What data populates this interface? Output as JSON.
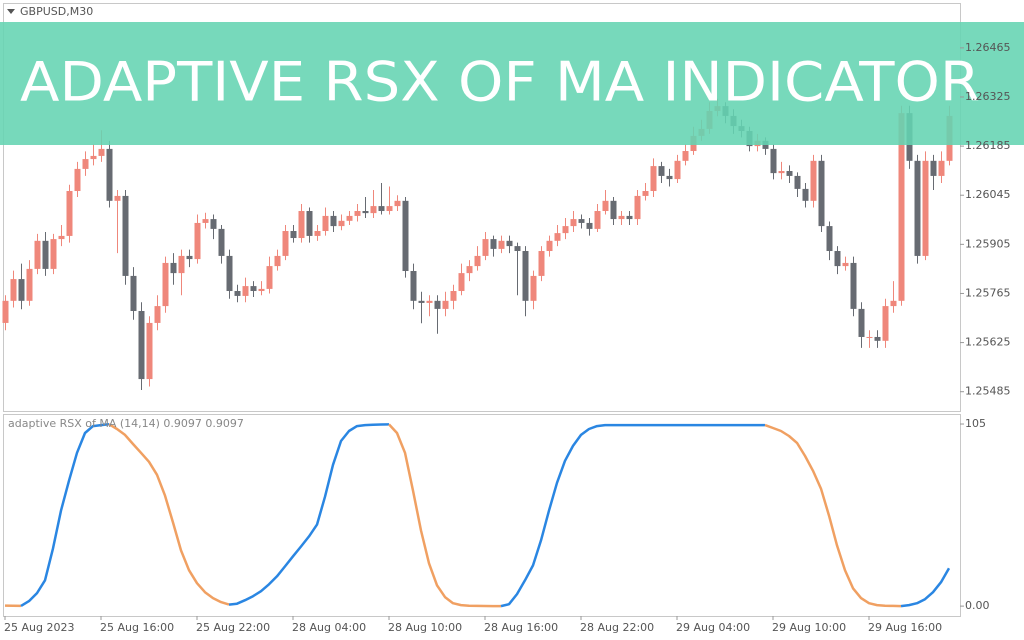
{
  "banner": "ADAPTIVE RSX OF MA INDICATOR",
  "chart_data": [
    {
      "type": "candlestick",
      "title": "GBPUSD,M30",
      "up_color": "#ef877b",
      "down_color": "#676b72",
      "ylim": [
        1.2543,
        1.2659
      ],
      "yticks": [
        1.26465,
        1.26325,
        1.26185,
        1.26045,
        1.25905,
        1.25765,
        1.25625,
        1.25485
      ],
      "xlim": [
        -0.25,
        119.375
      ],
      "ohlc": [
        [
          1.25681,
          1.2576,
          1.2566,
          1.25744
        ],
        [
          1.25744,
          1.2583,
          1.25725,
          1.25806
        ],
        [
          1.25806,
          1.2585,
          1.2572,
          1.25744
        ],
        [
          1.25744,
          1.2586,
          1.2573,
          1.25835
        ],
        [
          1.25835,
          1.25935,
          1.2582,
          1.25915
        ],
        [
          1.25915,
          1.2594,
          1.25815,
          1.25835
        ],
        [
          1.25835,
          1.25935,
          1.2582,
          1.2592
        ],
        [
          1.2592,
          1.2596,
          1.259,
          1.25929
        ],
        [
          1.25929,
          1.26075,
          1.2591,
          1.26057
        ],
        [
          1.26057,
          1.2614,
          1.2604,
          1.2612
        ],
        [
          1.2612,
          1.2617,
          1.261,
          1.26148
        ],
        [
          1.26148,
          1.2619,
          1.2613,
          1.26157
        ],
        [
          1.26157,
          1.2623,
          1.2614,
          1.26177
        ],
        [
          1.26177,
          1.262,
          1.2601,
          1.26029
        ],
        [
          1.26029,
          1.2606,
          1.2588,
          1.26043
        ],
        [
          1.26043,
          1.2606,
          1.2579,
          1.25815
        ],
        [
          1.25815,
          1.2584,
          1.2569,
          1.25715
        ],
        [
          1.25715,
          1.2574,
          1.2549,
          1.25521
        ],
        [
          1.25521,
          1.257,
          1.255,
          1.25681
        ],
        [
          1.25681,
          1.2576,
          1.2566,
          1.25729
        ],
        [
          1.25729,
          1.2587,
          1.2571,
          1.25852
        ],
        [
          1.25852,
          1.2588,
          1.2579,
          1.25823
        ],
        [
          1.25823,
          1.2589,
          1.2576,
          1.25872
        ],
        [
          1.25872,
          1.2589,
          1.2584,
          1.25863
        ],
        [
          1.25863,
          1.2599,
          1.2585,
          1.25966
        ],
        [
          1.25966,
          1.25995,
          1.2595,
          1.25977
        ],
        [
          1.25977,
          1.2599,
          1.2592,
          1.25949
        ],
        [
          1.25949,
          1.2596,
          1.2585,
          1.25872
        ],
        [
          1.25872,
          1.2589,
          1.2575,
          1.25772
        ],
        [
          1.25772,
          1.2579,
          1.2574,
          1.25758
        ],
        [
          1.25758,
          1.2581,
          1.2574,
          1.25786
        ],
        [
          1.25786,
          1.258,
          1.25755,
          1.25772
        ],
        [
          1.25772,
          1.258,
          1.2576,
          1.25778
        ],
        [
          1.25778,
          1.2587,
          1.25765,
          1.25843
        ],
        [
          1.25843,
          1.2589,
          1.2583,
          1.25872
        ],
        [
          1.25872,
          1.2596,
          1.2586,
          1.25943
        ],
        [
          1.25943,
          1.2596,
          1.2591,
          1.25923
        ],
        [
          1.25923,
          1.2602,
          1.2591,
          1.26
        ],
        [
          1.26,
          1.2601,
          1.2591,
          1.25929
        ],
        [
          1.25929,
          1.2596,
          1.25915,
          1.25943
        ],
        [
          1.25943,
          1.2601,
          1.2593,
          1.25986
        ],
        [
          1.25986,
          1.26,
          1.2594,
          1.25957
        ],
        [
          1.25957,
          1.2599,
          1.25945,
          1.25972
        ],
        [
          1.25972,
          1.26,
          1.2596,
          1.25986
        ],
        [
          1.25986,
          1.2602,
          1.2597,
          1.26
        ],
        [
          1.26,
          1.2604,
          1.2598,
          1.25994
        ],
        [
          1.25994,
          1.2606,
          1.2598,
          1.26014
        ],
        [
          1.26014,
          1.2608,
          1.2599,
          1.26
        ],
        [
          1.26,
          1.2607,
          1.2599,
          1.26014
        ],
        [
          1.26014,
          1.26045,
          1.26,
          1.26029
        ],
        [
          1.26029,
          1.2604,
          1.2581,
          1.25829
        ],
        [
          1.25829,
          1.2585,
          1.2572,
          1.25744
        ],
        [
          1.25744,
          1.2577,
          1.2568,
          1.25738
        ],
        [
          1.25738,
          1.2576,
          1.257,
          1.25744
        ],
        [
          1.25744,
          1.2576,
          1.2565,
          1.25721
        ],
        [
          1.25721,
          1.2577,
          1.257,
          1.25744
        ],
        [
          1.25744,
          1.2579,
          1.2572,
          1.25772
        ],
        [
          1.25772,
          1.2585,
          1.2576,
          1.25823
        ],
        [
          1.25823,
          1.2586,
          1.258,
          1.25843
        ],
        [
          1.25843,
          1.259,
          1.2583,
          1.25872
        ],
        [
          1.25872,
          1.2594,
          1.2586,
          1.2592
        ],
        [
          1.2592,
          1.2593,
          1.2587,
          1.25892
        ],
        [
          1.25892,
          1.2593,
          1.2588,
          1.25915
        ],
        [
          1.25915,
          1.2593,
          1.2588,
          1.259
        ],
        [
          1.259,
          1.2591,
          1.2576,
          1.25886
        ],
        [
          1.25886,
          1.259,
          1.257,
          1.25744
        ],
        [
          1.25744,
          1.2583,
          1.2572,
          1.25815
        ],
        [
          1.25815,
          1.259,
          1.258,
          1.25886
        ],
        [
          1.25886,
          1.2593,
          1.2587,
          1.25915
        ],
        [
          1.25915,
          1.2596,
          1.259,
          1.25937
        ],
        [
          1.25937,
          1.2598,
          1.2592,
          1.25957
        ],
        [
          1.25957,
          1.26,
          1.2594,
          1.25977
        ],
        [
          1.25977,
          1.2599,
          1.2595,
          1.25966
        ],
        [
          1.25966,
          1.2598,
          1.2593,
          1.25949
        ],
        [
          1.25949,
          1.2602,
          1.2594,
          1.26
        ],
        [
          1.26,
          1.2606,
          1.2599,
          1.26029
        ],
        [
          1.26029,
          1.2604,
          1.2596,
          1.25977
        ],
        [
          1.25977,
          1.26,
          1.2596,
          1.25986
        ],
        [
          1.25986,
          1.26,
          1.2596,
          1.25977
        ],
        [
          1.25977,
          1.2606,
          1.2596,
          1.26043
        ],
        [
          1.26043,
          1.2608,
          1.2603,
          1.26057
        ],
        [
          1.26057,
          1.2615,
          1.2604,
          1.26128
        ],
        [
          1.26128,
          1.2614,
          1.2608,
          1.261
        ],
        [
          1.261,
          1.2612,
          1.2607,
          1.26091
        ],
        [
          1.26091,
          1.2616,
          1.2608,
          1.26143
        ],
        [
          1.26143,
          1.2619,
          1.2613,
          1.26171
        ],
        [
          1.26171,
          1.2624,
          1.2616,
          1.26214
        ],
        [
          1.26214,
          1.2626,
          1.262,
          1.26234
        ],
        [
          1.26234,
          1.2631,
          1.2622,
          1.26285
        ],
        [
          1.26285,
          1.2632,
          1.2627,
          1.26299
        ],
        [
          1.26299,
          1.2631,
          1.2625,
          1.26271
        ],
        [
          1.26271,
          1.2629,
          1.2622,
          1.26242
        ],
        [
          1.26242,
          1.2626,
          1.2621,
          1.26228
        ],
        [
          1.26228,
          1.2624,
          1.2617,
          1.26185
        ],
        [
          1.26185,
          1.2622,
          1.2617,
          1.262
        ],
        [
          1.262,
          1.2621,
          1.2616,
          1.26177
        ],
        [
          1.26177,
          1.2619,
          1.2609,
          1.26108
        ],
        [
          1.26108,
          1.2614,
          1.2609,
          1.26114
        ],
        [
          1.26114,
          1.2613,
          1.2608,
          1.261
        ],
        [
          1.261,
          1.2611,
          1.2604,
          1.26063
        ],
        [
          1.26063,
          1.2608,
          1.2601,
          1.26029
        ],
        [
          1.26029,
          1.2616,
          1.2601,
          1.26143
        ],
        [
          1.26143,
          1.2616,
          1.2594,
          1.25957
        ],
        [
          1.25957,
          1.2597,
          1.2586,
          1.25886
        ],
        [
          1.25886,
          1.259,
          1.2582,
          1.25843
        ],
        [
          1.25843,
          1.2587,
          1.2583,
          1.25852
        ],
        [
          1.25852,
          1.2587,
          1.257,
          1.25721
        ],
        [
          1.25721,
          1.2574,
          1.2561,
          1.25641
        ],
        [
          1.25641,
          1.2566,
          1.2561,
          1.25641
        ],
        [
          1.25641,
          1.2566,
          1.2561,
          1.2563
        ],
        [
          1.2563,
          1.2575,
          1.2561,
          1.25729
        ],
        [
          1.25729,
          1.258,
          1.2571,
          1.25744
        ],
        [
          1.25744,
          1.263,
          1.2573,
          1.26279
        ],
        [
          1.26279,
          1.263,
          1.2612,
          1.26143
        ],
        [
          1.26143,
          1.2616,
          1.2585,
          1.25872
        ],
        [
          1.25872,
          1.2617,
          1.2586,
          1.26143
        ],
        [
          1.26143,
          1.2616,
          1.2606,
          1.261
        ],
        [
          1.261,
          1.2617,
          1.2608,
          1.26143
        ],
        [
          1.26143,
          1.263,
          1.2613,
          1.26271
        ]
      ]
    },
    {
      "type": "line",
      "title": "adaptive RSX of MA (14,14) 0.9097 0.9097",
      "color_up": "#2a86e2",
      "color_down": "#f0a062",
      "ylim": [
        -5.7,
        110.2
      ],
      "yticks": [
        105,
        {
          "value": 0,
          "label": "0.00"
        }
      ],
      "xlim": [
        -0.25,
        119.375
      ],
      "xticks": [
        {
          "value": 0,
          "label": "25 Aug 2023"
        },
        {
          "value": 12,
          "label": "25 Aug 16:00"
        },
        {
          "value": 24,
          "label": "25 Aug 22:00"
        },
        {
          "value": 36,
          "label": "28 Aug 04:00"
        },
        {
          "value": 48,
          "label": "28 Aug 10:00"
        },
        {
          "value": 60,
          "label": "28 Aug 16:00"
        },
        {
          "value": 72,
          "label": "28 Aug 22:00"
        },
        {
          "value": 84,
          "label": "29 Aug 04:00"
        },
        {
          "value": 96,
          "label": "29 Aug 10:00"
        },
        {
          "value": 108,
          "label": "29 Aug 16:00"
        }
      ],
      "values": [
        0.3,
        0.2,
        0.1,
        2.9,
        7.5,
        14.9,
        33.3,
        55.1,
        72.3,
        88.4,
        99.8,
        103.8,
        104.4,
        104.9,
        102.1,
        98.7,
        93.5,
        88.4,
        83.2,
        75.7,
        63.7,
        48.2,
        32.1,
        20.7,
        13.2,
        8.0,
        4.6,
        2.3,
        0.9,
        1.4,
        3.4,
        5.7,
        8.6,
        12.6,
        17.2,
        22.9,
        28.7,
        34.4,
        40.2,
        47.0,
        63.1,
        81.5,
        95.2,
        101.0,
        103.8,
        104.4,
        104.6,
        104.7,
        104.8,
        99.8,
        88.4,
        66.6,
        43.6,
        24.7,
        12.0,
        5.2,
        1.7,
        0.6,
        0.2,
        0.1,
        0.05,
        0.02,
        0.0,
        1.1,
        6.9,
        14.9,
        23.5,
        37.9,
        55.1,
        71.1,
        83.8,
        92.4,
        98.7,
        102.1,
        103.8,
        104.4,
        104.4,
        104.4,
        104.4,
        104.4,
        104.4,
        104.4,
        104.4,
        104.4,
        104.4,
        104.4,
        104.4,
        104.4,
        104.4,
        104.4,
        104.4,
        104.4,
        104.4,
        104.4,
        104.4,
        104.4,
        102.7,
        101.0,
        98.1,
        94.1,
        86.6,
        78.0,
        67.7,
        52.2,
        35.0,
        20.7,
        10.3,
        4.6,
        1.7,
        0.6,
        0.2,
        0.1,
        0.0,
        0.6,
        1.7,
        4.0,
        8.0,
        13.8,
        21.8
      ]
    }
  ]
}
